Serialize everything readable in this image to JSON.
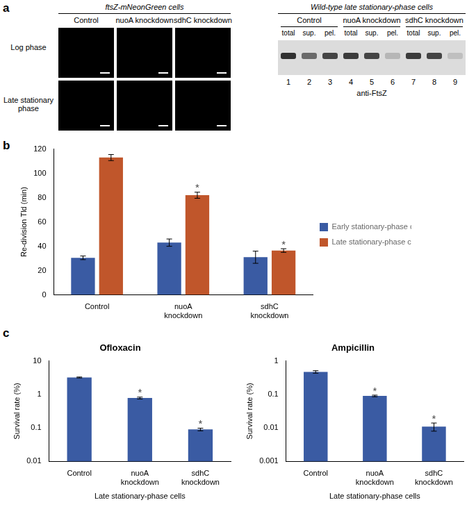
{
  "panel_labels": [
    "a",
    "b",
    "c"
  ],
  "panel_a": {
    "microscopy": {
      "title": "ftsZ-mNeonGreen cells",
      "columns": [
        "Control",
        "nuoA knockdown",
        "sdhC knockdown"
      ],
      "rows": [
        "Log phase",
        "Late stationary phase"
      ]
    },
    "blot": {
      "title": "Wild-type late stationary-phase cells",
      "groups": [
        "Control",
        "nuoA knockdown",
        "sdhC knockdown"
      ],
      "lanes": [
        "total",
        "sup.",
        "pel.",
        "total",
        "sup.",
        "pel.",
        "total",
        "sup.",
        "pel."
      ],
      "lane_numbers": [
        1,
        2,
        3,
        4,
        5,
        6,
        7,
        8,
        9
      ],
      "band_intensity": [
        0.9,
        0.6,
        0.8,
        0.85,
        0.8,
        0.2,
        0.85,
        0.8,
        0.15
      ],
      "antibody": "anti-FtsZ"
    }
  },
  "chart_data": [
    {
      "type": "bar",
      "y_label": "Re-division Tld (min)",
      "categories": [
        "Control",
        "nuoA knockdown",
        "sdhC knockdown"
      ],
      "series": [
        {
          "name": "Early stationary-phase cells",
          "color": "#3a5ba3",
          "values": [
            30.5,
            43,
            31
          ],
          "errors": [
            1.5,
            3,
            5
          ]
        },
        {
          "name": "Late stationary-phase cells",
          "color": "#c0562b",
          "values": [
            113,
            82,
            36.5
          ],
          "errors": [
            2.5,
            2.5,
            1.5
          ]
        }
      ],
      "ylim": [
        0,
        120
      ],
      "yticks": [
        0,
        20,
        40,
        60,
        80,
        100,
        120
      ],
      "grid": false,
      "legend": "right",
      "annotations": [
        {
          "text": "*",
          "category": "nuoA knockdown",
          "series": "Late stationary-phase cells"
        },
        {
          "text": "*",
          "category": "sdhC knockdown",
          "series": "Late stationary-phase cells"
        }
      ]
    },
    {
      "type": "bar",
      "title": "Ofloxacin",
      "x_label": "Late stationary-phase cells",
      "y_label": "Survival rate (%)",
      "categories": [
        "Control",
        "nuoA knockdown",
        "sdhC knockdown"
      ],
      "values": [
        3.2,
        0.78,
        0.09
      ],
      "errors": [
        0.1,
        0.05,
        0.008
      ],
      "color": "#3a5ba3",
      "log": "y",
      "ylim": [
        0.01,
        10
      ],
      "yticks": [
        0.01,
        0.1,
        1,
        10
      ],
      "grid": false,
      "annotations": [
        {
          "text": "*",
          "category": "nuoA knockdown"
        },
        {
          "text": "*",
          "category": "sdhC knockdown"
        }
      ]
    },
    {
      "type": "bar",
      "title": "Ampicillin",
      "x_label": "Late stationary-phase cells",
      "y_label": "Survival rate (%)",
      "categories": [
        "Control",
        "nuoA knockdown",
        "sdhC knockdown"
      ],
      "values": [
        0.47,
        0.09,
        0.011
      ],
      "errors": [
        0.04,
        0.005,
        0.003
      ],
      "color": "#3a5ba3",
      "log": "y",
      "ylim": [
        0.001,
        1
      ],
      "yticks": [
        0.001,
        0.01,
        0.1,
        1
      ],
      "grid": false,
      "annotations": [
        {
          "text": "*",
          "category": "nuoA knockdown"
        },
        {
          "text": "*",
          "category": "sdhC knockdown"
        }
      ]
    }
  ]
}
